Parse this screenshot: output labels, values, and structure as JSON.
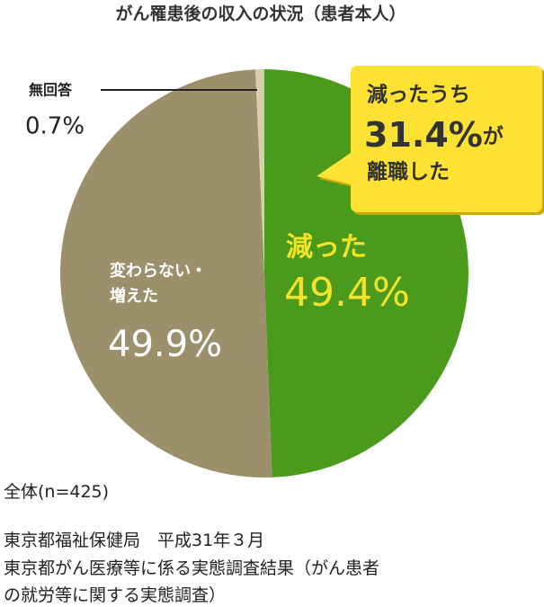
{
  "chart_data": {
    "type": "pie",
    "title": "がん罹患後の収入の状況（患者本人）",
    "categories": [
      "減った",
      "変わらない・増えた",
      "無回答"
    ],
    "values": [
      49.4,
      49.9,
      0.7
    ],
    "value_labels": [
      "49.4%",
      "49.9%",
      "0.7%"
    ],
    "colors": [
      "#4a9b1c",
      "#9c8f6b",
      "#d9ceae"
    ],
    "annotation": {
      "lines": [
        "減ったうち",
        "31.4%",
        "が",
        "離職した"
      ]
    },
    "sample_note": "全体(n=425)",
    "source": [
      "東京都福祉保健局　平成31年３月",
      "東京都がん医療等に係る実態調査結果（がん患者",
      "の就労等に関する実態調査）"
    ]
  }
}
